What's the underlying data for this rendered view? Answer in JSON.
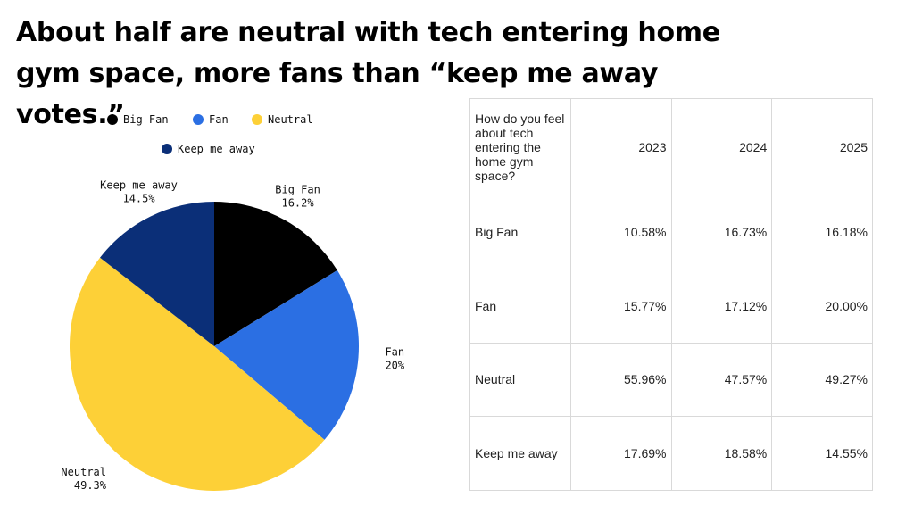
{
  "title": "About half are neutral with tech entering home gym space, more fans than “keep me away votes.”",
  "chart_data": {
    "type": "pie",
    "categories": [
      "Big Fan",
      "Fan",
      "Neutral",
      "Keep me away"
    ],
    "values": [
      16.2,
      20,
      49.3,
      14.5
    ],
    "value_labels": [
      "16.2%",
      "20%",
      "49.3%",
      "14.5%"
    ],
    "colors": [
      "#000000",
      "#2b6fe3",
      "#fdd037",
      "#0b2f78"
    ]
  },
  "table": {
    "header": [
      "How do you feel about tech entering the home gym space?",
      "2023",
      "2024",
      "2025"
    ],
    "rows": [
      [
        "Big Fan",
        "10.58%",
        "16.73%",
        "16.18%"
      ],
      [
        "Fan",
        "15.77%",
        "17.12%",
        "20.00%"
      ],
      [
        "Neutral",
        "55.96%",
        "47.57%",
        "49.27%"
      ],
      [
        "Keep me away",
        "17.69%",
        "18.58%",
        "14.55%"
      ]
    ]
  }
}
